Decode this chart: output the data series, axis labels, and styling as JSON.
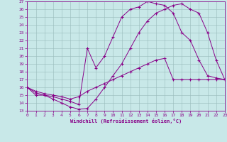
{
  "xlabel": "Windchill (Refroidissement éolien,°C)",
  "bg_color": "#c8e8e8",
  "line_color": "#880088",
  "grid_color": "#99bbbb",
  "xlim": [
    0,
    23
  ],
  "ylim": [
    13,
    27
  ],
  "yticks": [
    13,
    14,
    15,
    16,
    17,
    18,
    19,
    20,
    21,
    22,
    23,
    24,
    25,
    26,
    27
  ],
  "xticks": [
    0,
    1,
    2,
    3,
    4,
    5,
    6,
    7,
    8,
    9,
    10,
    11,
    12,
    13,
    14,
    15,
    16,
    17,
    18,
    19,
    20,
    21,
    22,
    23
  ],
  "line1_x": [
    0,
    1,
    2,
    3,
    4,
    5,
    6,
    7,
    8,
    9,
    10,
    11,
    12,
    13,
    14,
    15,
    16,
    17,
    18,
    19,
    20,
    21,
    22,
    23
  ],
  "line1_y": [
    16,
    15,
    15,
    14.5,
    14,
    13.5,
    13.2,
    13.3,
    14.5,
    16,
    17.5,
    19,
    21,
    23,
    24.5,
    25.5,
    26,
    26.5,
    26.7,
    26,
    25.5,
    23,
    19.5,
    17
  ],
  "line2_x": [
    0,
    1,
    2,
    3,
    4,
    5,
    6,
    7,
    8,
    9,
    10,
    11,
    12,
    13,
    14,
    15,
    16,
    17,
    18,
    19,
    20,
    21,
    22,
    23
  ],
  "line2_y": [
    16,
    15.3,
    15,
    14.8,
    14.5,
    14.2,
    13.8,
    21,
    18.5,
    20,
    22.5,
    25,
    26,
    26.3,
    27,
    26.7,
    26.5,
    25.5,
    23,
    22,
    19.5,
    17.5,
    17.2,
    17
  ],
  "line3_x": [
    0,
    1,
    2,
    3,
    4,
    5,
    6,
    7,
    8,
    9,
    10,
    11,
    12,
    13,
    14,
    15,
    16,
    17,
    18,
    19,
    20,
    21,
    22,
    23
  ],
  "line3_y": [
    16,
    15.5,
    15.2,
    15,
    14.8,
    14.5,
    14.8,
    15.5,
    16,
    16.5,
    17,
    17.5,
    18,
    18.5,
    19,
    19.5,
    19.7,
    17,
    17,
    17,
    17,
    17,
    17,
    17
  ]
}
